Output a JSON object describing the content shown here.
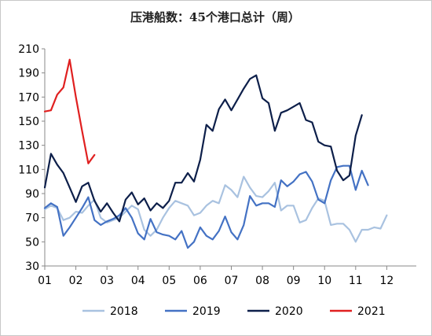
{
  "chart_data": {
    "type": "line",
    "title": "压港船数：45个港口总计（周）",
    "xlabel": "",
    "ylabel": "",
    "ylim": [
      30,
      210
    ],
    "yticks": [
      30,
      50,
      70,
      90,
      110,
      130,
      150,
      170,
      190,
      210
    ],
    "xlim": [
      1,
      12.95
    ],
    "xticks": [
      "01",
      "02",
      "03",
      "04",
      "05",
      "06",
      "07",
      "08",
      "09",
      "10",
      "11",
      "12"
    ],
    "grid": false,
    "legend": "bottom",
    "series": [
      {
        "name": "2018",
        "color": "#a9c2e0",
        "points": [
          [
            1.0,
            77
          ],
          [
            1.2,
            80
          ],
          [
            1.4,
            78
          ],
          [
            1.6,
            68
          ],
          [
            1.8,
            70
          ],
          [
            2.0,
            75
          ],
          [
            2.2,
            74
          ],
          [
            2.4,
            80
          ],
          [
            2.6,
            85
          ],
          [
            2.8,
            70
          ],
          [
            3.0,
            66
          ],
          [
            3.2,
            68
          ],
          [
            3.4,
            70
          ],
          [
            3.6,
            75
          ],
          [
            3.8,
            80
          ],
          [
            4.0,
            77
          ],
          [
            4.2,
            60
          ],
          [
            4.4,
            55
          ],
          [
            4.6,
            60
          ],
          [
            4.8,
            70
          ],
          [
            5.0,
            78
          ],
          [
            5.2,
            84
          ],
          [
            5.4,
            82
          ],
          [
            5.6,
            80
          ],
          [
            5.8,
            72
          ],
          [
            6.0,
            74
          ],
          [
            6.2,
            80
          ],
          [
            6.4,
            84
          ],
          [
            6.6,
            82
          ],
          [
            6.8,
            97
          ],
          [
            7.0,
            93
          ],
          [
            7.2,
            87
          ],
          [
            7.4,
            104
          ],
          [
            7.6,
            95
          ],
          [
            7.8,
            88
          ],
          [
            8.0,
            87
          ],
          [
            8.2,
            92
          ],
          [
            8.4,
            99
          ],
          [
            8.6,
            76
          ],
          [
            8.8,
            80
          ],
          [
            9.0,
            80
          ],
          [
            9.2,
            66
          ],
          [
            9.4,
            68
          ],
          [
            9.6,
            78
          ],
          [
            9.8,
            86
          ],
          [
            10.0,
            84
          ],
          [
            10.2,
            64
          ],
          [
            10.4,
            65
          ],
          [
            10.6,
            65
          ],
          [
            10.8,
            60
          ],
          [
            11.0,
            50
          ],
          [
            11.2,
            60
          ],
          [
            11.4,
            60
          ],
          [
            11.6,
            62
          ],
          [
            11.8,
            61
          ],
          [
            12.0,
            72
          ]
        ]
      },
      {
        "name": "2019",
        "color": "#4472c4",
        "points": [
          [
            1.0,
            78
          ],
          [
            1.2,
            82
          ],
          [
            1.4,
            79
          ],
          [
            1.6,
            55
          ],
          [
            1.8,
            62
          ],
          [
            2.0,
            70
          ],
          [
            2.2,
            78
          ],
          [
            2.4,
            87
          ],
          [
            2.6,
            68
          ],
          [
            2.8,
            64
          ],
          [
            3.0,
            67
          ],
          [
            3.2,
            69
          ],
          [
            3.4,
            72
          ],
          [
            3.6,
            78
          ],
          [
            3.8,
            70
          ],
          [
            4.0,
            57
          ],
          [
            4.2,
            52
          ],
          [
            4.4,
            69
          ],
          [
            4.6,
            58
          ],
          [
            4.8,
            56
          ],
          [
            5.0,
            55
          ],
          [
            5.2,
            52
          ],
          [
            5.4,
            59
          ],
          [
            5.6,
            45
          ],
          [
            5.8,
            50
          ],
          [
            6.0,
            62
          ],
          [
            6.2,
            55
          ],
          [
            6.4,
            52
          ],
          [
            6.6,
            59
          ],
          [
            6.8,
            71
          ],
          [
            7.0,
            58
          ],
          [
            7.2,
            52
          ],
          [
            7.4,
            64
          ],
          [
            7.6,
            88
          ],
          [
            7.8,
            80
          ],
          [
            8.0,
            82
          ],
          [
            8.2,
            82
          ],
          [
            8.4,
            79
          ],
          [
            8.6,
            101
          ],
          [
            8.8,
            96
          ],
          [
            9.0,
            100
          ],
          [
            9.2,
            106
          ],
          [
            9.4,
            108
          ],
          [
            9.6,
            100
          ],
          [
            9.8,
            85
          ],
          [
            10.0,
            82
          ],
          [
            10.2,
            101
          ],
          [
            10.4,
            112
          ],
          [
            10.6,
            113
          ],
          [
            10.8,
            113
          ],
          [
            11.0,
            93
          ],
          [
            11.2,
            109
          ],
          [
            11.4,
            97
          ]
        ]
      },
      {
        "name": "2020",
        "color": "#0d1f4a",
        "points": [
          [
            1.0,
            95
          ],
          [
            1.2,
            123
          ],
          [
            1.4,
            114
          ],
          [
            1.6,
            107
          ],
          [
            1.8,
            95
          ],
          [
            2.0,
            83
          ],
          [
            2.2,
            96
          ],
          [
            2.4,
            99
          ],
          [
            2.6,
            84
          ],
          [
            2.8,
            75
          ],
          [
            3.0,
            82
          ],
          [
            3.2,
            74
          ],
          [
            3.4,
            67
          ],
          [
            3.6,
            85
          ],
          [
            3.8,
            91
          ],
          [
            4.0,
            81
          ],
          [
            4.2,
            86
          ],
          [
            4.4,
            76
          ],
          [
            4.6,
            82
          ],
          [
            4.8,
            78
          ],
          [
            5.0,
            84
          ],
          [
            5.2,
            99
          ],
          [
            5.4,
            99
          ],
          [
            5.6,
            107
          ],
          [
            5.8,
            100
          ],
          [
            6.0,
            118
          ],
          [
            6.2,
            147
          ],
          [
            6.4,
            142
          ],
          [
            6.6,
            160
          ],
          [
            6.8,
            168
          ],
          [
            7.0,
            159
          ],
          [
            7.2,
            168
          ],
          [
            7.4,
            177
          ],
          [
            7.6,
            185
          ],
          [
            7.8,
            188
          ],
          [
            8.0,
            169
          ],
          [
            8.2,
            165
          ],
          [
            8.4,
            142
          ],
          [
            8.6,
            157
          ],
          [
            8.8,
            159
          ],
          [
            9.0,
            162
          ],
          [
            9.2,
            165
          ],
          [
            9.4,
            151
          ],
          [
            9.6,
            149
          ],
          [
            9.8,
            133
          ],
          [
            10.0,
            130
          ],
          [
            10.2,
            129
          ],
          [
            10.4,
            109
          ],
          [
            10.6,
            101
          ],
          [
            10.8,
            105
          ],
          [
            11.0,
            138
          ],
          [
            11.2,
            155
          ]
        ]
      },
      {
        "name": "2021",
        "color": "#e02020",
        "points": [
          [
            1.0,
            158
          ],
          [
            1.2,
            159
          ],
          [
            1.4,
            172
          ],
          [
            1.6,
            178
          ],
          [
            1.8,
            201
          ],
          [
            2.0,
            170
          ],
          [
            2.2,
            142
          ],
          [
            2.4,
            115
          ],
          [
            2.6,
            122
          ]
        ]
      }
    ]
  }
}
